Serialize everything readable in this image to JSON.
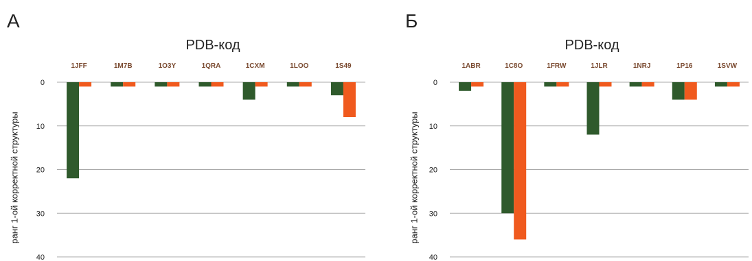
{
  "colors": {
    "series1": "#2f5a2c",
    "series2": "#f05a1e",
    "grid": "#a9a9a9",
    "category_text": "#7a4a30",
    "text": "#222222"
  },
  "chart_data": [
    {
      "panel_label": "А",
      "type": "bar",
      "title": "PDB-код",
      "ylabel": "ранг 1-ой корректной структуры",
      "ylim": [
        0,
        40
      ],
      "y_inverted": true,
      "y_ticks": [
        0,
        10,
        20,
        30,
        40
      ],
      "categories": [
        "1JFF",
        "1M7B",
        "1O3Y",
        "1QRA",
        "1CXM",
        "1LOO",
        "1S49"
      ],
      "category_axis_position": "top",
      "grid": true,
      "legend": "none",
      "series": [
        {
          "values": [
            22,
            1,
            1,
            1,
            4,
            1,
            3
          ]
        },
        {
          "values": [
            1,
            1,
            1,
            1,
            1,
            1,
            8
          ]
        }
      ]
    },
    {
      "panel_label": "Б",
      "type": "bar",
      "title": "PDB-код",
      "ylabel": "ранг 1-ой корректной структуры",
      "ylim": [
        0,
        40
      ],
      "y_inverted": true,
      "y_ticks": [
        0,
        10,
        20,
        30,
        40
      ],
      "categories": [
        "1ABR",
        "1C8O",
        "1FRW",
        "1JLR",
        "1NRJ",
        "1P16",
        "1SVW"
      ],
      "category_axis_position": "top",
      "grid": true,
      "legend": "none",
      "series": [
        {
          "values": [
            2,
            30,
            1,
            12,
            1,
            4,
            1
          ]
        },
        {
          "values": [
            1,
            36,
            1,
            1,
            1,
            4,
            1
          ]
        }
      ]
    }
  ]
}
